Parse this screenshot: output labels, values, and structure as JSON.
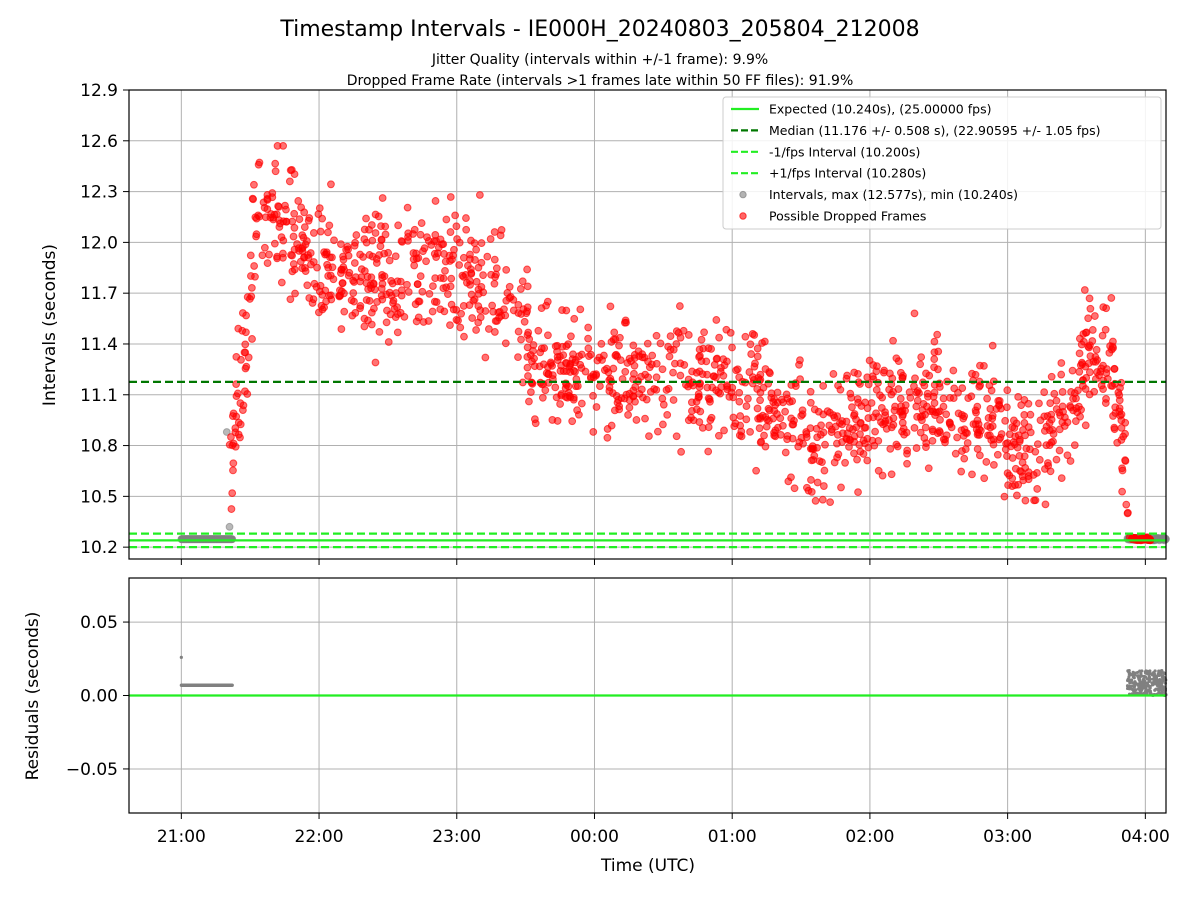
{
  "title": "Timestamp Intervals - IE000H_20240803_205804_212008",
  "subtitle_lines": [
    "Jitter Quality (intervals within +/-1 frame): 9.9%",
    "Dropped Frame Rate (intervals >1 frames late within 50 FF files): 91.9%"
  ],
  "chart_data": [
    {
      "type": "scatter",
      "name": "intervals",
      "ylabel": "Intervals (seconds)",
      "ylim": [
        10.13,
        12.9
      ],
      "yticks": [
        "10.2",
        "10.5",
        "10.8",
        "11.1",
        "11.4",
        "11.7",
        "12.0",
        "12.3",
        "12.6",
        "12.9"
      ],
      "xlim_hours": [
        20.62,
        28.15
      ],
      "xticks": [
        "21:00",
        "22:00",
        "23:00",
        "00:00",
        "01:00",
        "02:00",
        "03:00",
        "04:00"
      ],
      "grid": true,
      "legend_placement": "top-right",
      "colors": {
        "expected": "#22ee22",
        "median": "#007700",
        "interval": "#22ee22",
        "intervals_points": "#808080",
        "dropped_points": "#ff0000"
      },
      "reference_lines": {
        "expected": 10.24,
        "median": 11.176,
        "minus_fps": 10.2,
        "plus_fps": 10.28
      },
      "legend": [
        {
          "label": "Expected (10.240s), (25.00000 fps)",
          "style": "solid",
          "color": "#22ee22"
        },
        {
          "label": "Median (11.176 +/- 0.508 s), (22.90595 +/- 1.05 fps)",
          "style": "dashed",
          "color": "#007700"
        },
        {
          "label": "-1/fps Interval (10.200s)",
          "style": "dashed",
          "color": "#22ee22"
        },
        {
          "label": "+1/fps Interval (10.280s)",
          "style": "dashed",
          "color": "#22ee22"
        },
        {
          "label": "Intervals, max (12.577s), min (10.240s)",
          "style": "dot",
          "color": "#808080"
        },
        {
          "label": "Possible Dropped Frames",
          "style": "dot",
          "color": "#ff0000"
        }
      ],
      "series": [
        {
          "name": "Intervals",
          "segments": [
            {
              "x_range": [
                21.0,
                21.37
              ],
              "y_approx": 10.247
            },
            {
              "x_range": [
                27.87,
                28.15
              ],
              "y_range": [
                10.24,
                10.257
              ]
            }
          ],
          "outliers": [
            [
              21.35,
              10.32
            ],
            [
              21.33,
              10.88
            ]
          ]
        },
        {
          "name": "Possible Dropped Frames",
          "trend": [
            [
              21.35,
              10.7
            ],
            [
              21.45,
              11.3
            ],
            [
              21.55,
              12.1
            ],
            [
              21.7,
              12.2
            ],
            [
              21.85,
              12.05
            ],
            [
              22.0,
              11.85
            ],
            [
              22.3,
              11.75
            ],
            [
              22.6,
              11.85
            ],
            [
              22.9,
              11.85
            ],
            [
              23.2,
              11.75
            ],
            [
              23.5,
              11.45
            ],
            [
              23.6,
              11.25
            ],
            [
              24.0,
              11.2
            ],
            [
              24.5,
              11.2
            ],
            [
              25.0,
              11.15
            ],
            [
              25.4,
              11.0
            ],
            [
              25.6,
              10.8
            ],
            [
              26.0,
              11.0
            ],
            [
              26.5,
              11.05
            ],
            [
              26.9,
              10.95
            ],
            [
              27.2,
              10.75
            ],
            [
              27.45,
              11.1
            ],
            [
              27.6,
              11.35
            ],
            [
              27.75,
              11.3
            ],
            [
              27.82,
              10.9
            ],
            [
              27.86,
              10.5
            ],
            [
              27.9,
              10.25
            ],
            [
              28.05,
              10.25
            ]
          ],
          "spread": 0.18,
          "count_approx": 1500
        }
      ]
    },
    {
      "type": "scatter",
      "name": "residuals",
      "ylabel": "Residuals (seconds)",
      "xlabel": "Time (UTC)",
      "ylim": [
        -0.08,
        0.08
      ],
      "yticks": [
        "0.05",
        "0.00",
        "−0.05"
      ],
      "xticks": [
        "21:00",
        "22:00",
        "23:00",
        "00:00",
        "01:00",
        "02:00",
        "03:00",
        "04:00"
      ],
      "grid": true,
      "series": [
        {
          "name": "Residuals",
          "segments": [
            {
              "x_range": [
                21.0,
                21.37
              ],
              "y_approx": 0.007
            },
            {
              "x_range": [
                27.87,
                28.15
              ],
              "y_range": [
                0.0,
                0.017
              ]
            }
          ],
          "outliers": [
            [
              21.0,
              0.026
            ]
          ]
        }
      ]
    }
  ]
}
